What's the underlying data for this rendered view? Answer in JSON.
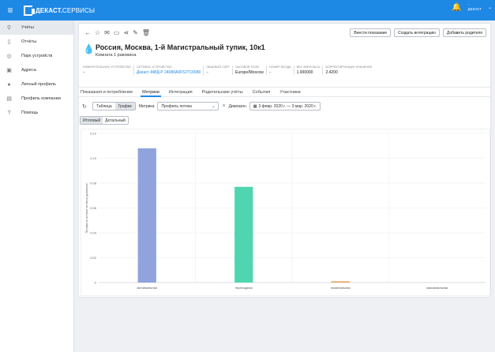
{
  "app": {
    "brand_bold": "ДЕКАСТ.",
    "brand_light": "СЕРВИСЫ",
    "user_line1": "-",
    "user_line2": "ДЕКАСТ"
  },
  "sidebar": {
    "items": [
      {
        "label": "Учёты",
        "icon": "meter-icon"
      },
      {
        "label": "Отчёты",
        "icon": "file-icon"
      },
      {
        "label": "Парк устройств",
        "icon": "eye-icon"
      },
      {
        "label": "Адреса",
        "icon": "building-icon"
      },
      {
        "label": "Личный профиль",
        "icon": "person-icon"
      },
      {
        "label": "Профиль компании",
        "icon": "company-icon"
      },
      {
        "label": "Помощь",
        "icon": "help-icon"
      }
    ]
  },
  "header": {
    "buttons": {
      "enter_reading": "Внести показание",
      "create_integration": "Создать интеграцию",
      "add_parent": "Добавить родителя"
    },
    "title": "Россия, Москва, 1-й Магистральный тупик, 10к1",
    "subtitle": "Комната 1 раковина"
  },
  "info": [
    {
      "label": "Измерительное устройство",
      "value": "–",
      "kind": "muted"
    },
    {
      "label": "Сетевое устройство",
      "value": "Декаст-МИД-Р 24080A0F527C6580",
      "kind": "link"
    },
    {
      "label": "Лицевой счёт",
      "value": "–",
      "kind": "muted"
    },
    {
      "label": "Часовой пояс",
      "value": "Europe/Moscow",
      "kind": "plain"
    },
    {
      "label": "Номер входа",
      "value": "–",
      "kind": "muted"
    },
    {
      "label": "Вес импульса",
      "value": "1.000000",
      "kind": "plain"
    },
    {
      "label": "Корректирующее значение",
      "value": "2.4200",
      "kind": "plain"
    }
  ],
  "tabs": [
    "Показания и потребление",
    "Метрики",
    "Интеграция",
    "Родительские учёты",
    "События",
    "Участники"
  ],
  "active_tab": 1,
  "controls": {
    "view_table": "Таблица",
    "view_chart": "График",
    "metric_label": "Метрика",
    "metric_value": "Профиль потока",
    "range_label": "Диапазон",
    "range_value": "3 февр. 2020 г. — 3 мар. 2020 г."
  },
  "mode": {
    "total": "Итоговый",
    "detailed": "Детальный"
  },
  "colors": {
    "topbar": "#1e88e5",
    "bar1": "#8fa3dd",
    "bar2": "#4fd6b0",
    "bar3": "#f0a25a"
  },
  "chart_data": {
    "type": "bar",
    "categories": [
      "минимальная",
      "переходная",
      "номинальная",
      "максимальная"
    ],
    "values": [
      0.108,
      0.077,
      0.001,
      0
    ],
    "ylabel": "Профиль потока за весь диапазон",
    "ylim": [
      0,
      0.12
    ],
    "yticks": [
      "0",
      "0.02",
      "0.04",
      "0.06",
      "0.08",
      "0.10",
      "0.12"
    ],
    "grid": true
  }
}
